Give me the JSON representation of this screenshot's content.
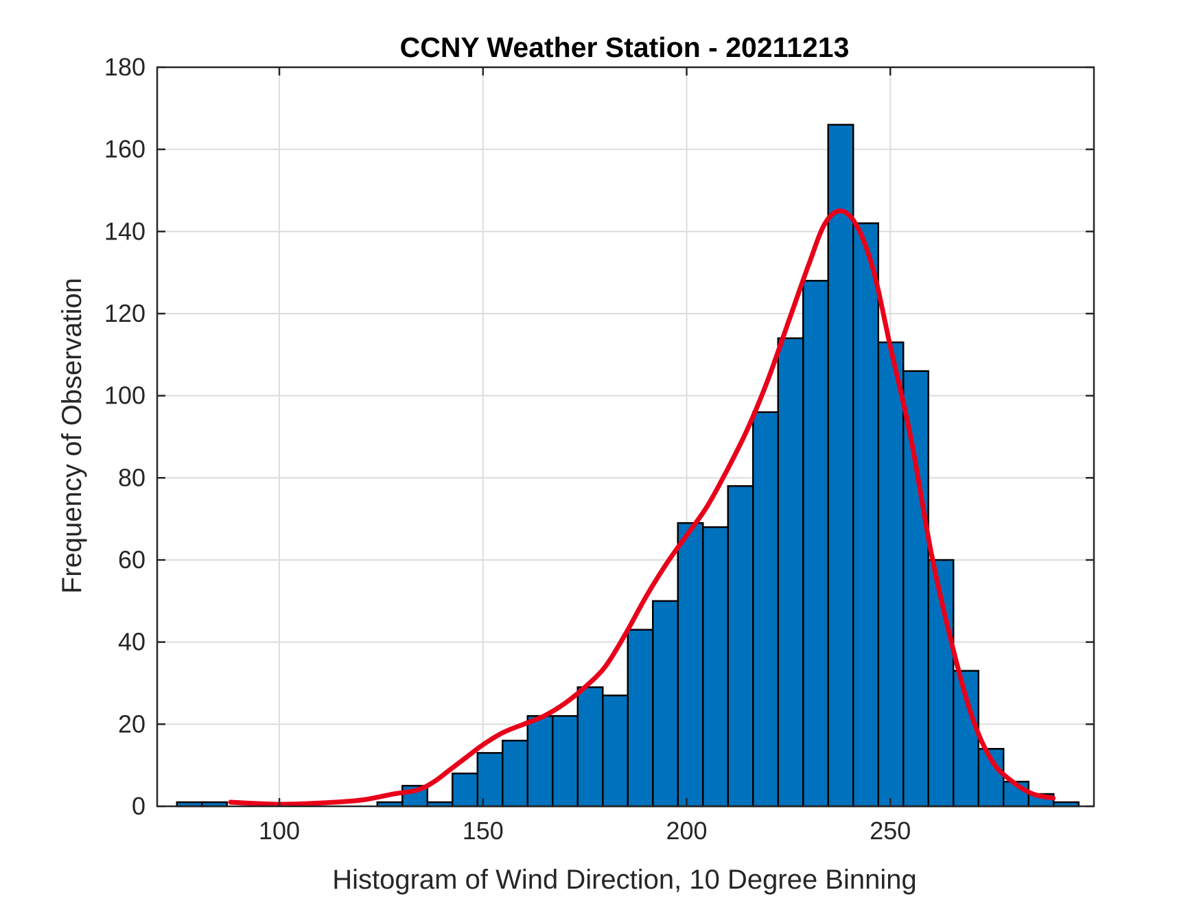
{
  "chart_data": {
    "type": "bar",
    "title": "CCNY Weather Station - 20211213",
    "xlabel": "Histogram of Wind Direction, 10 Degree Binning",
    "ylabel": "Frequency of Observation",
    "xlim": [
      70,
      300
    ],
    "ylim": [
      0,
      180
    ],
    "xticks": [
      100,
      150,
      200,
      250
    ],
    "yticks": [
      0,
      20,
      40,
      60,
      80,
      100,
      120,
      140,
      160,
      180
    ],
    "grid": true,
    "bin_width": 6.15,
    "bins": [
      {
        "left": 74.85,
        "value": 1
      },
      {
        "left": 81.0,
        "value": 1
      },
      {
        "left": 87.15,
        "value": 0
      },
      {
        "left": 93.3,
        "value": 0
      },
      {
        "left": 99.45,
        "value": 0
      },
      {
        "left": 105.6,
        "value": 0
      },
      {
        "left": 111.75,
        "value": 0
      },
      {
        "left": 117.9,
        "value": 0
      },
      {
        "left": 124.05,
        "value": 1
      },
      {
        "left": 130.2,
        "value": 5
      },
      {
        "left": 136.35,
        "value": 1
      },
      {
        "left": 142.5,
        "value": 8
      },
      {
        "left": 148.65,
        "value": 13
      },
      {
        "left": 154.8,
        "value": 16
      },
      {
        "left": 160.95,
        "value": 22
      },
      {
        "left": 167.1,
        "value": 22
      },
      {
        "left": 173.25,
        "value": 29
      },
      {
        "left": 179.4,
        "value": 27
      },
      {
        "left": 185.55,
        "value": 43
      },
      {
        "left": 191.7,
        "value": 50
      },
      {
        "left": 197.85,
        "value": 69
      },
      {
        "left": 204.0,
        "value": 68
      },
      {
        "left": 210.15,
        "value": 78
      },
      {
        "left": 216.3,
        "value": 96
      },
      {
        "left": 222.45,
        "value": 114
      },
      {
        "left": 228.6,
        "value": 128
      },
      {
        "left": 234.75,
        "value": 166
      },
      {
        "left": 240.9,
        "value": 142
      },
      {
        "left": 247.05,
        "value": 113
      },
      {
        "left": 253.2,
        "value": 106
      },
      {
        "left": 259.35,
        "value": 60
      },
      {
        "left": 265.5,
        "value": 33
      },
      {
        "left": 271.65,
        "value": 14
      },
      {
        "left": 277.8,
        "value": 6
      },
      {
        "left": 283.95,
        "value": 3
      },
      {
        "left": 290.1,
        "value": 1
      }
    ],
    "series": [
      {
        "type": "line",
        "x": [
          88,
          100,
          110,
          120,
          128,
          134,
          138,
          142,
          146,
          150,
          155,
          160,
          165,
          170,
          175,
          180,
          185,
          190,
          195,
          200,
          205,
          210,
          215,
          220,
          225,
          230,
          234,
          238,
          242,
          246,
          250,
          255,
          260,
          265,
          270,
          275,
          280,
          285,
          290
        ],
        "y": [
          1,
          0.5,
          0.8,
          1.5,
          3,
          4,
          6,
          9,
          12,
          15,
          18,
          20,
          22,
          25,
          29,
          34,
          42,
          51,
          59,
          66,
          73,
          82,
          92,
          104,
          118,
          132,
          142,
          145,
          141,
          130,
          112,
          90,
          62,
          40,
          22,
          11,
          6,
          3,
          2
        ]
      }
    ],
    "colors": {
      "bar_fill": "#0072bd",
      "bar_edge": "#000000",
      "line": "#e8001a"
    }
  }
}
